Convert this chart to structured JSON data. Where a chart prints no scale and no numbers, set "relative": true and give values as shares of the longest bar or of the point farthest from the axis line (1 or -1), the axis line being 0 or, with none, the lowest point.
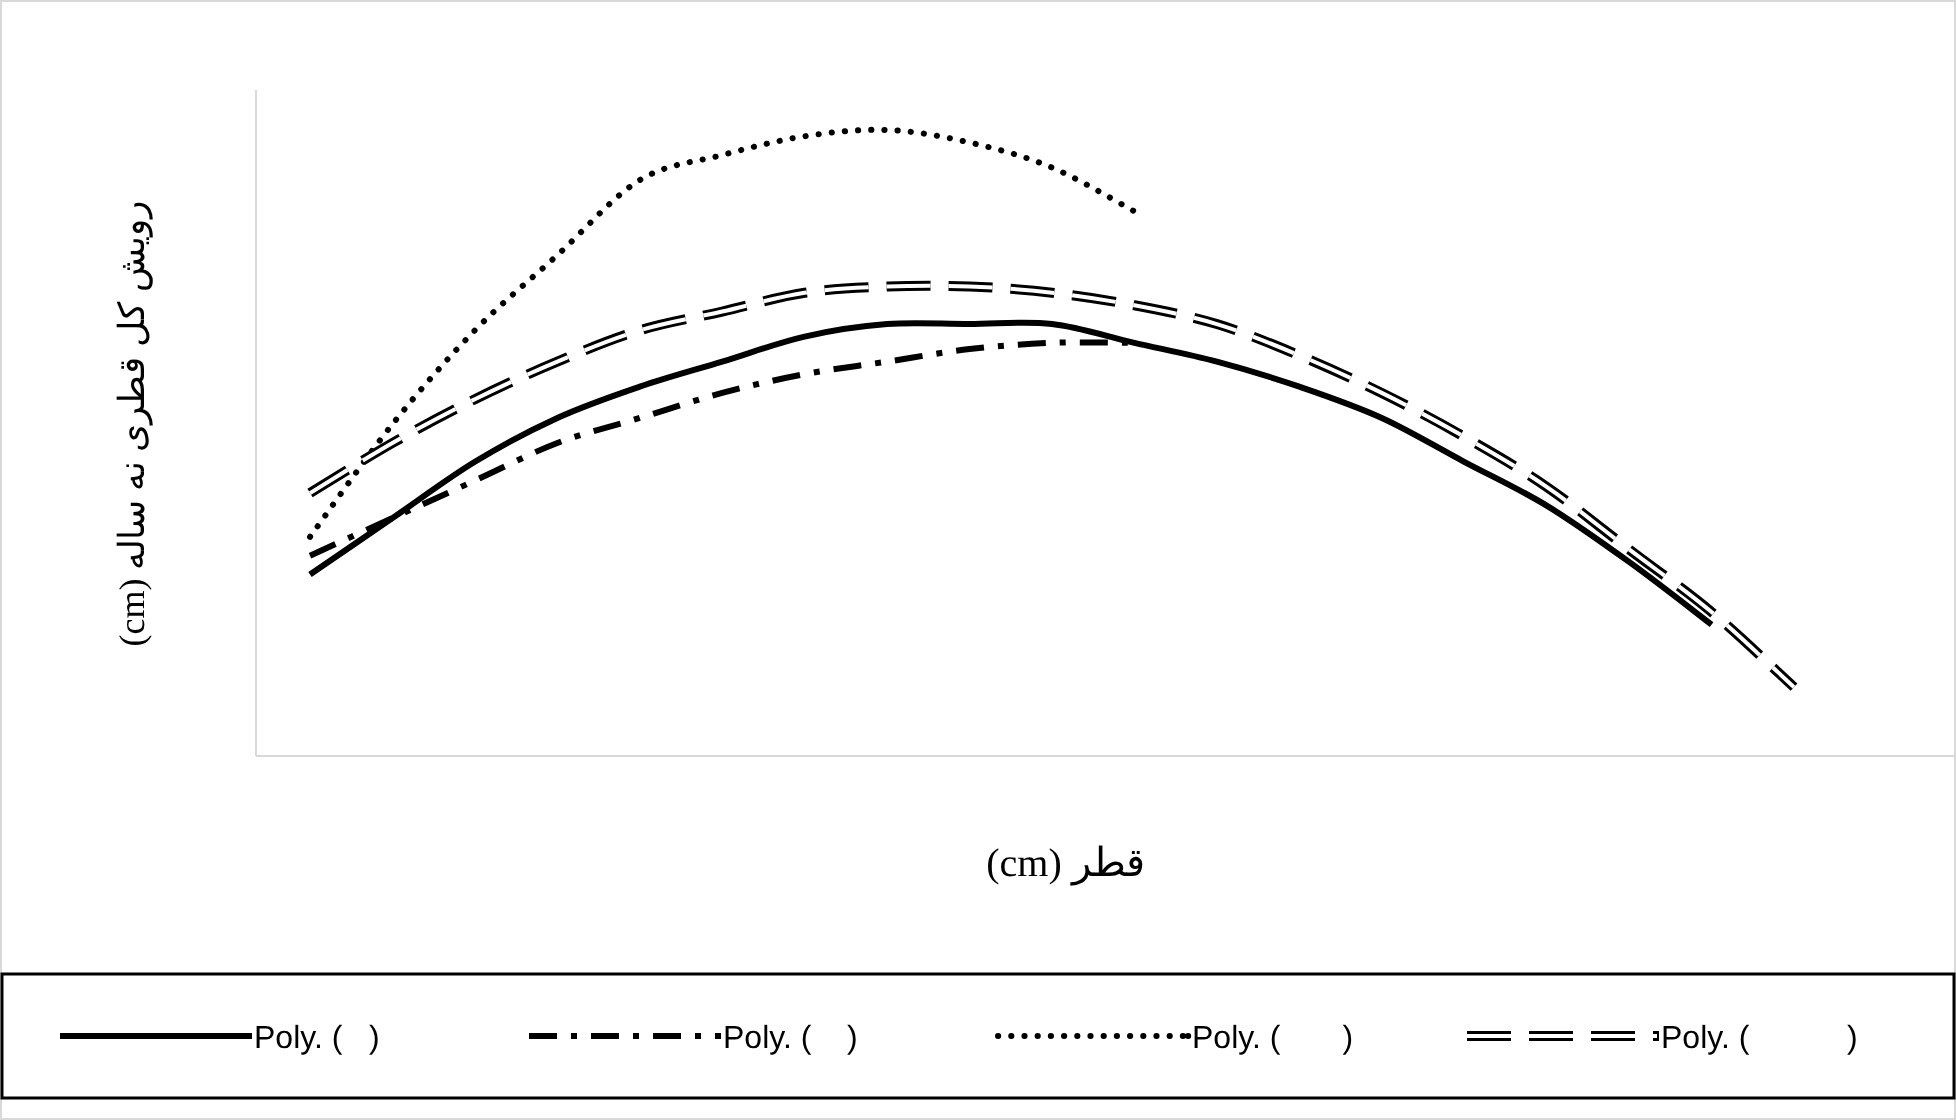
{
  "chart_data": {
    "type": "line",
    "relative": true,
    "xlabel": "قطر (cm)",
    "ylabel": "رویش کل قطری نه ساله  (cm)",
    "legend": "bottom",
    "grid": false,
    "categories": [
      null,
      null,
      null,
      null,
      null,
      null,
      null,
      null,
      null,
      null,
      null,
      null,
      null,
      null,
      null,
      null,
      null,
      null,
      null
    ],
    "series": [
      {
        "name": "Poly. (   )",
        "color": "#000000",
        "line_style": "solid",
        "values": [
          0.29,
          0.38,
          0.47,
          0.54,
          0.59,
          0.63,
          0.67,
          0.69,
          0.69,
          0.69,
          0.66,
          0.63,
          0.59,
          0.54,
          0.47,
          0.4,
          0.31,
          0.21,
          null
        ]
      },
      {
        "name": "Poly. (    )",
        "color": "#000000",
        "line_style": "dashdot",
        "values": [
          0.32,
          0.38,
          0.44,
          0.5,
          0.54,
          0.58,
          0.61,
          0.63,
          0.65,
          0.66,
          0.66,
          null,
          null,
          null,
          null,
          null,
          null,
          null,
          null
        ]
      },
      {
        "name": "Poly. (       )",
        "color": "#000000",
        "line_style": "dotted",
        "values": [
          0.35,
          0.53,
          0.68,
          0.8,
          0.92,
          0.96,
          0.99,
          1.0,
          0.98,
          0.94,
          0.87,
          null,
          null,
          null,
          null,
          null,
          null,
          null,
          null
        ]
      },
      {
        "name": "Poly. (           )",
        "color": "#000000",
        "line_style": "double",
        "values": [
          0.42,
          0.5,
          0.57,
          0.63,
          0.68,
          0.71,
          0.74,
          0.75,
          0.75,
          0.74,
          0.72,
          0.69,
          0.64,
          0.58,
          0.51,
          0.43,
          0.33,
          0.23,
          0.11
        ]
      }
    ]
  }
}
